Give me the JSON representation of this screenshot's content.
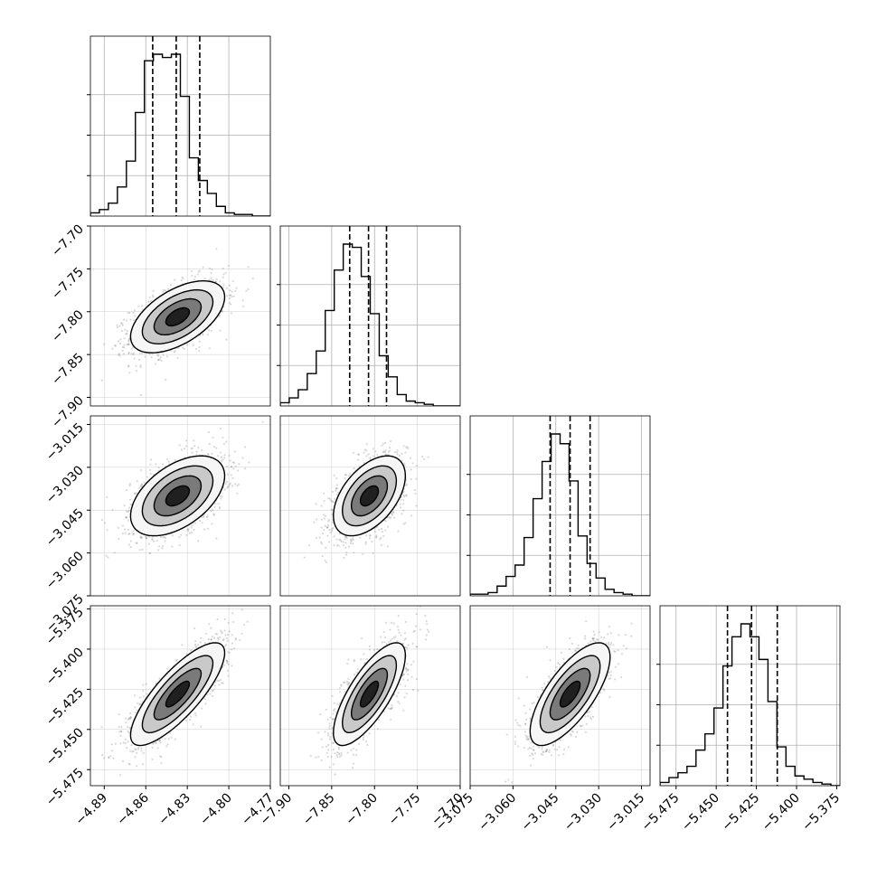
{
  "chart_data": {
    "type": "corner",
    "grid": true,
    "parameters": [
      {
        "range": [
          -4.9,
          -4.77
        ],
        "ticks": [
          "−4.89",
          "−4.86",
          "−4.83",
          "−4.80",
          "−4.77"
        ],
        "tick_values": [
          -4.89,
          -4.86,
          -4.83,
          -4.8,
          -4.77
        ],
        "mean": -4.837,
        "sd": 0.017,
        "quantiles": {
          "q16": -4.855,
          "q50": -4.838,
          "q84": -4.821
        },
        "histogram_bin_edges_start": -4.9,
        "histogram_bin_width": 0.0065,
        "histogram_counts": [
          2,
          4,
          8,
          18,
          34,
          64,
          96,
          100,
          98,
          100,
          74,
          36,
          22,
          14,
          6,
          2,
          1,
          1,
          0,
          0
        ]
      },
      {
        "range": [
          -7.91,
          -7.7
        ],
        "ticks": [
          "−7.90",
          "−7.85",
          "−7.80",
          "−7.75",
          "−7.70"
        ],
        "tick_values": [
          -7.9,
          -7.85,
          -7.8,
          -7.75,
          -7.7
        ],
        "mean": -7.806,
        "sd": 0.021,
        "quantiles": {
          "q16": -7.829,
          "q50": -7.807,
          "q84": -7.786
        },
        "histogram_bin_edges_start": -7.91,
        "histogram_bin_width": 0.0105,
        "histogram_counts": [
          2,
          5,
          10,
          20,
          34,
          59,
          84,
          100,
          98,
          80,
          57,
          31,
          18,
          7,
          3,
          2,
          1,
          0,
          0,
          0
        ]
      },
      {
        "range": [
          -3.075,
          -3.012
        ],
        "ticks": [
          "−3.075",
          "−3.060",
          "−3.045",
          "−3.030",
          "−3.015"
        ],
        "tick_values": [
          -3.075,
          -3.06,
          -3.045,
          -3.03,
          -3.015
        ],
        "mean": -3.04,
        "sd": 0.007,
        "quantiles": {
          "q16": -3.047,
          "q50": -3.04,
          "q84": -3.033
        },
        "histogram_bin_edges_start": -3.075,
        "histogram_bin_width": 0.00315,
        "histogram_counts": [
          1,
          1,
          2,
          6,
          12,
          19,
          36,
          60,
          83,
          100,
          94,
          71,
          37,
          20,
          11,
          4,
          2,
          1,
          0,
          0
        ]
      },
      {
        "range": [
          -5.485,
          -5.373
        ],
        "ticks": [
          "−5.475",
          "−5.450",
          "−5.425",
          "−5.400",
          "−5.375"
        ],
        "tick_values": [
          -5.475,
          -5.45,
          -5.425,
          -5.4,
          -5.375
        ],
        "mean": -5.428,
        "sd": 0.016,
        "quantiles": {
          "q16": -5.443,
          "q50": -5.428,
          "q84": -5.412
        },
        "histogram_bin_edges_start": -5.485,
        "histogram_bin_width": 0.0056,
        "histogram_counts": [
          2,
          5,
          8,
          12,
          22,
          32,
          48,
          74,
          92,
          100,
          92,
          78,
          52,
          24,
          12,
          6,
          4,
          2,
          1,
          0
        ]
      }
    ],
    "correlations": {
      "1-0": 0.55,
      "2-0": 0.5,
      "2-1": 0.5,
      "3-0": 0.8,
      "3-1": 0.75,
      "3-2": 0.72
    },
    "sample_points_per_panel": 1500,
    "contour_levels_sigma": [
      0.5,
      1.0,
      1.5,
      2.0
    ]
  }
}
